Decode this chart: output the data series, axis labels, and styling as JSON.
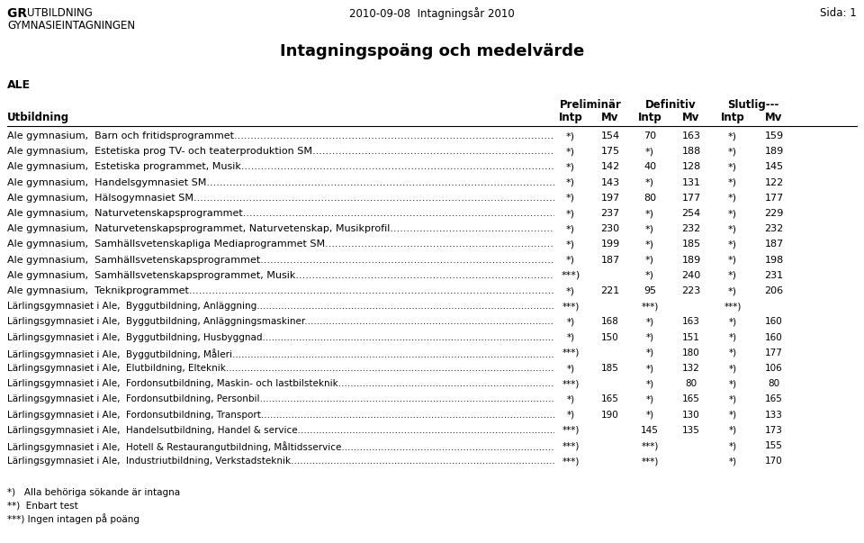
{
  "top_left_line1": "GR UTBILDNING",
  "top_left_line2": "GYMNASIEINTAGNINGEN",
  "top_center": "2010-09-08  Intagningsår 2010",
  "top_right": "Sida: 1",
  "main_title": "Intagningspoäng och medelvärde",
  "section_label": "ALE",
  "col_header_label": "Utbildning",
  "col_headers_group": [
    "Preliminär",
    "Definitiv",
    "Slutlig---"
  ],
  "col_headers_sub": [
    "Intp",
    "Mv",
    "Intp",
    "Mv",
    "Intp",
    "Mv"
  ],
  "rows": [
    {
      "name": "Ale gymnasium,  Barn och fritidsprogrammet",
      "prelim_intp": "*)",
      "prelim_mv": "154",
      "def_intp": "70",
      "def_mv": "163",
      "slut_intp": "*)",
      "slut_mv": "159"
    },
    {
      "name": "Ale gymnasium,  Estetiska prog TV- och teaterproduktion SM",
      "prelim_intp": "*)",
      "prelim_mv": "175",
      "def_intp": "*)",
      "def_mv": "188",
      "slut_intp": "*)",
      "slut_mv": "189"
    },
    {
      "name": "Ale gymnasium,  Estetiska programmet, Musik",
      "prelim_intp": "*)",
      "prelim_mv": "142",
      "def_intp": "40",
      "def_mv": "128",
      "slut_intp": "*)",
      "slut_mv": "145"
    },
    {
      "name": "Ale gymnasium,  Handelsgymnasiet SM",
      "prelim_intp": "*)",
      "prelim_mv": "143",
      "def_intp": "*)",
      "def_mv": "131",
      "slut_intp": "*)",
      "slut_mv": "122"
    },
    {
      "name": "Ale gymnasium,  Hälsogymnasiet SM",
      "prelim_intp": "*)",
      "prelim_mv": "197",
      "def_intp": "80",
      "def_mv": "177",
      "slut_intp": "*)",
      "slut_mv": "177"
    },
    {
      "name": "Ale gymnasium,  Naturvetenskapsprogrammet",
      "prelim_intp": "*)",
      "prelim_mv": "237",
      "def_intp": "*)",
      "def_mv": "254",
      "slut_intp": "*)",
      "slut_mv": "229"
    },
    {
      "name": "Ale gymnasium,  Naturvetenskapsprogrammet, Naturvetenskap, Musikprofil",
      "prelim_intp": "*)",
      "prelim_mv": "230",
      "def_intp": "*)",
      "def_mv": "232",
      "slut_intp": "*)",
      "slut_mv": "232"
    },
    {
      "name": "Ale gymnasium,  Samhällsvetenskapliga Mediaprogrammet SM",
      "prelim_intp": "*)",
      "prelim_mv": "199",
      "def_intp": "*)",
      "def_mv": "185",
      "slut_intp": "*)",
      "slut_mv": "187"
    },
    {
      "name": "Ale gymnasium,  Samhällsvetenskapsprogrammet",
      "prelim_intp": "*)",
      "prelim_mv": "187",
      "def_intp": "*)",
      "def_mv": "189",
      "slut_intp": "*)",
      "slut_mv": "198"
    },
    {
      "name": "Ale gymnasium,  Samhällsvetenskapsprogrammet, Musik",
      "prelim_intp": "***)",
      "prelim_mv": "",
      "def_intp": "*)",
      "def_mv": "240",
      "slut_intp": "*)",
      "slut_mv": "231"
    },
    {
      "name": "Ale gymnasium,  Teknikprogrammet",
      "prelim_intp": "*)",
      "prelim_mv": "221",
      "def_intp": "95",
      "def_mv": "223",
      "slut_intp": "*)",
      "slut_mv": "206"
    },
    {
      "name": "Lärlingsgymnasiet i Ale,  Byggutbildning, Anläggning",
      "prelim_intp": "***)",
      "prelim_mv": "",
      "def_intp": "***)",
      "def_mv": "",
      "slut_intp": "***)",
      "slut_mv": ""
    },
    {
      "name": "Lärlingsgymnasiet i Ale,  Byggutbildning, Anläggningsmaskiner",
      "prelim_intp": "*)",
      "prelim_mv": "168",
      "def_intp": "*)",
      "def_mv": "163",
      "slut_intp": "*)",
      "slut_mv": "160"
    },
    {
      "name": "Lärlingsgymnasiet i Ale,  Byggutbildning, Husbyggnad",
      "prelim_intp": "*)",
      "prelim_mv": "150",
      "def_intp": "*)",
      "def_mv": "151",
      "slut_intp": "*)",
      "slut_mv": "160"
    },
    {
      "name": "Lärlingsgymnasiet i Ale,  Byggutbildning, Måleri",
      "prelim_intp": "***)",
      "prelim_mv": "",
      "def_intp": "*)",
      "def_mv": "180",
      "slut_intp": "*)",
      "slut_mv": "177"
    },
    {
      "name": "Lärlingsgymnasiet i Ale,  Elutbildning, Elteknik",
      "prelim_intp": "*)",
      "prelim_mv": "185",
      "def_intp": "*)",
      "def_mv": "132",
      "slut_intp": "*)",
      "slut_mv": "106"
    },
    {
      "name": "Lärlingsgymnasiet i Ale,  Fordonsutbildning, Maskin- och lastbilsteknik",
      "prelim_intp": "***)",
      "prelim_mv": "",
      "def_intp": "*)",
      "def_mv": "80",
      "slut_intp": "*)",
      "slut_mv": "80"
    },
    {
      "name": "Lärlingsgymnasiet i Ale,  Fordonsutbildning, Personbil",
      "prelim_intp": "*)",
      "prelim_mv": "165",
      "def_intp": "*)",
      "def_mv": "165",
      "slut_intp": "*)",
      "slut_mv": "165"
    },
    {
      "name": "Lärlingsgymnasiet i Ale,  Fordonsutbildning, Transport",
      "prelim_intp": "*)",
      "prelim_mv": "190",
      "def_intp": "*)",
      "def_mv": "130",
      "slut_intp": "*)",
      "slut_mv": "133"
    },
    {
      "name": "Lärlingsgymnasiet i Ale,  Handelsutbildning, Handel & service",
      "prelim_intp": "***)",
      "prelim_mv": "",
      "def_intp": "145",
      "def_mv": "135",
      "slut_intp": "*)",
      "slut_mv": "173"
    },
    {
      "name": "Lärlingsgymnasiet i Ale,  Hotell & Restaurangutbildning, Måltidsservice",
      "prelim_intp": "***)",
      "prelim_mv": "",
      "def_intp": "***)",
      "def_mv": "",
      "slut_intp": "*)",
      "slut_mv": "155"
    },
    {
      "name": "Lärlingsgymnasiet i Ale,  Industriutbildning, Verkstadsteknik",
      "prelim_intp": "***)",
      "prelim_mv": "",
      "def_intp": "***)",
      "def_mv": "",
      "slut_intp": "*)",
      "slut_mv": "170"
    }
  ],
  "footnotes": [
    "*)   Alla behöriga sökande är intagna",
    "**)  Enbart test",
    "***) Ingen intagen på poäng"
  ],
  "bg_color": "#ffffff",
  "text_color": "#000000"
}
